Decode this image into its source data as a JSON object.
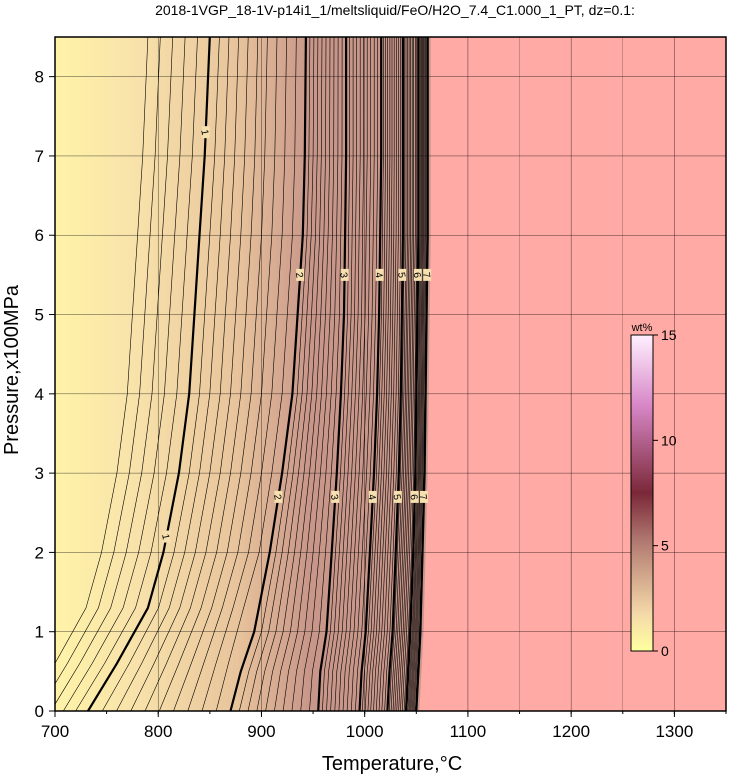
{
  "chart_data": {
    "type": "heatmap",
    "title": "2018-1VGP_18-1V-p14i1_1/meltsliquid/FeO/H2O_7.4_C1.000_1_PT, dz=0.1:",
    "xlabel": "Temperature,°C",
    "ylabel": "Pressure,x100MPa",
    "xlim": [
      700,
      1350
    ],
    "ylim": [
      0,
      8.5
    ],
    "x_ticks": [
      700,
      800,
      900,
      1000,
      1100,
      1200,
      1300
    ],
    "y_ticks": [
      0,
      1,
      2,
      3,
      4,
      5,
      6,
      7,
      8
    ],
    "grid": true,
    "colorbar": {
      "unit": "wt%",
      "range": [
        0,
        15
      ],
      "ticks": [
        0,
        5,
        10,
        15
      ],
      "colors": [
        "#ffffa0",
        "#f5d8a8",
        "#c89880",
        "#8c3040",
        "#d080c0",
        "#ffffff"
      ]
    },
    "background_color": "#ffaaa5",
    "contour_interval": 0.1,
    "labeled_contours": [
      {
        "level": 1,
        "points": [
          [
            732,
            0
          ],
          [
            760,
            0.6
          ],
          [
            790,
            1.3
          ],
          [
            805,
            2
          ],
          [
            820,
            3
          ],
          [
            830,
            4
          ],
          [
            835,
            5
          ],
          [
            840,
            6
          ],
          [
            845,
            7
          ],
          [
            850,
            8.5
          ]
        ]
      },
      {
        "level": 2,
        "points": [
          [
            870,
            0
          ],
          [
            880,
            0.5
          ],
          [
            893,
            1
          ],
          [
            908,
            2
          ],
          [
            920,
            3
          ],
          [
            930,
            4
          ],
          [
            935,
            5
          ],
          [
            940,
            6
          ],
          [
            942,
            7
          ],
          [
            943,
            8.5
          ]
        ]
      },
      {
        "level": 3,
        "points": [
          [
            955,
            0
          ],
          [
            957,
            0.5
          ],
          [
            963,
            1
          ],
          [
            968,
            2
          ],
          [
            973,
            3
          ],
          [
            977,
            4
          ],
          [
            980,
            5
          ],
          [
            981,
            6
          ],
          [
            982,
            7
          ],
          [
            982,
            8.5
          ]
        ]
      },
      {
        "level": 4,
        "points": [
          [
            995,
            0
          ],
          [
            997,
            0.5
          ],
          [
            1001,
            1
          ],
          [
            1005,
            2
          ],
          [
            1009,
            3
          ],
          [
            1012,
            4
          ],
          [
            1014,
            5
          ],
          [
            1015,
            6
          ],
          [
            1016,
            7
          ],
          [
            1016,
            8.5
          ]
        ]
      },
      {
        "level": 5,
        "points": [
          [
            1022,
            0
          ],
          [
            1024,
            0.5
          ],
          [
            1027,
            1
          ],
          [
            1030,
            2
          ],
          [
            1033,
            3
          ],
          [
            1035,
            4
          ],
          [
            1036,
            5
          ],
          [
            1037,
            6
          ],
          [
            1037,
            7
          ],
          [
            1037,
            8.5
          ]
        ]
      },
      {
        "level": 6,
        "points": [
          [
            1040,
            0
          ],
          [
            1042,
            0.5
          ],
          [
            1044,
            1
          ],
          [
            1047,
            2
          ],
          [
            1049,
            3
          ],
          [
            1050,
            4
          ],
          [
            1051,
            5
          ],
          [
            1052,
            6
          ],
          [
            1052,
            7
          ],
          [
            1052,
            8.5
          ]
        ]
      },
      {
        "level": 7,
        "points": [
          [
            1050,
            0
          ],
          [
            1052,
            0.5
          ],
          [
            1054,
            1
          ],
          [
            1056,
            2
          ],
          [
            1058,
            3
          ],
          [
            1059,
            4
          ],
          [
            1060,
            5
          ],
          [
            1061,
            6
          ],
          [
            1061,
            7
          ],
          [
            1061,
            8.5
          ]
        ]
      }
    ],
    "contour_label_values": [
      "1",
      "1",
      "1",
      "1",
      "2",
      "2",
      "3",
      "3",
      "4",
      "4",
      "5",
      "5",
      "6",
      "6",
      "7",
      "7"
    ]
  }
}
